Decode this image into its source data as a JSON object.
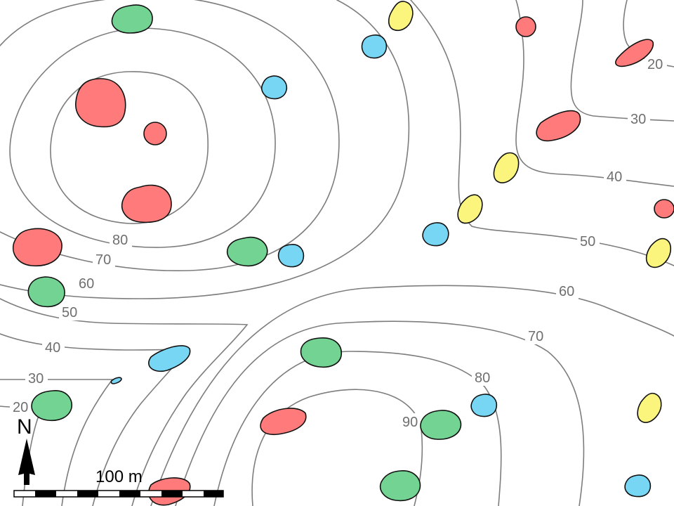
{
  "map": {
    "contour_interval_labels": [
      "20",
      "30",
      "40",
      "50",
      "60",
      "70",
      "80",
      "90"
    ],
    "label_text": {
      "a_20": "20",
      "a_30": "30",
      "a_40": "40",
      "a_50": "50",
      "b_60": "60",
      "b_70": "70",
      "b_80": "80",
      "b_90": "90",
      "c_60": "60",
      "c_70": "70",
      "c_80": "80",
      "c_90": "90",
      "d_20": "20",
      "d_30": "30",
      "d_40": "40",
      "d_50": "50",
      "d_60": "60"
    },
    "north_label": "N",
    "scale_label": "100 m",
    "colors": {
      "contour": "#7d7d7d",
      "red": "#ff7b7b",
      "green": "#72d392",
      "blue": "#78d6f5",
      "yellow": "#fbf57e",
      "outline": "#111111"
    },
    "marker_counts": {
      "red": 11,
      "green": 8,
      "blue": 10,
      "yellow": 6
    }
  }
}
